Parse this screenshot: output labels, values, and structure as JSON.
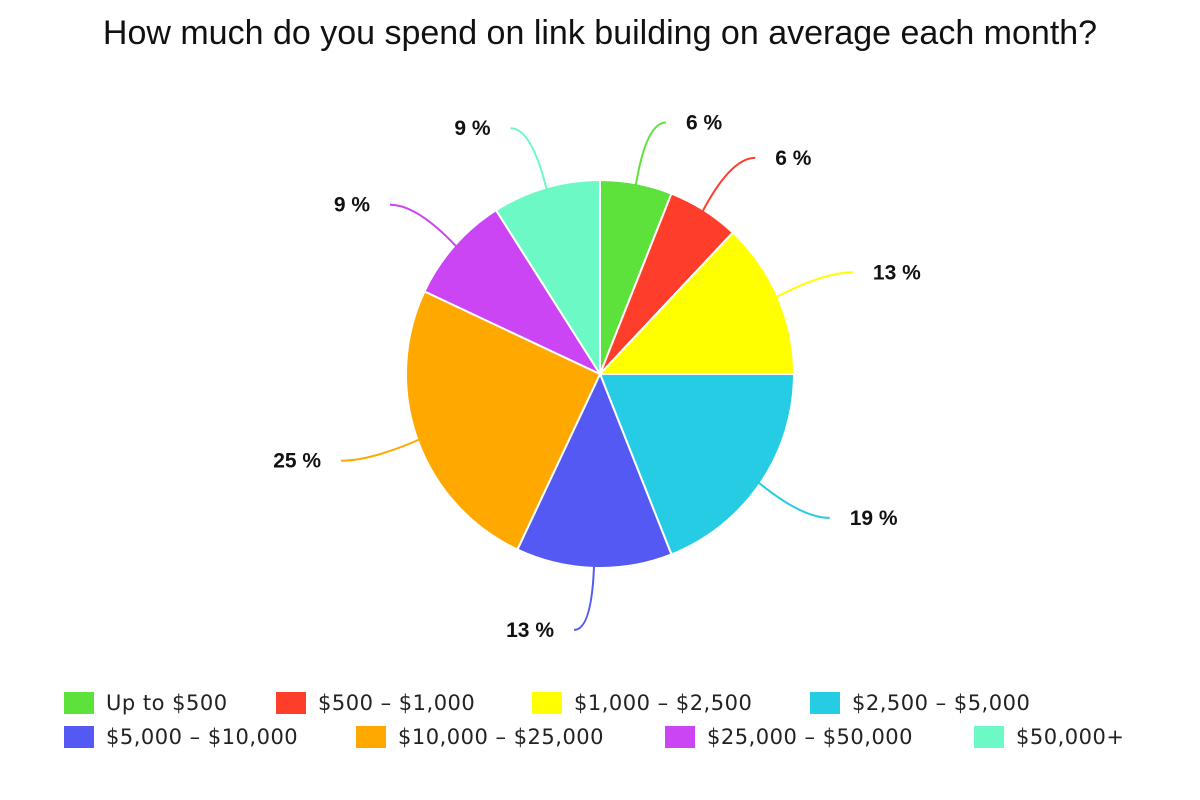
{
  "chart_data": {
    "type": "pie",
    "title": "How much do you spend on link building on average each month?",
    "start_angle_deg": 0,
    "direction": "clockwise",
    "legend_position": "bottom",
    "slices": [
      {
        "label": "Up to $500",
        "value": 6,
        "display": "6 %",
        "color": "#5de23b"
      },
      {
        "label": "$500 – $1,000",
        "value": 6,
        "display": "6 %",
        "color": "#ff3d2b"
      },
      {
        "label": "$1,000 – $2,500",
        "value": 13,
        "display": "13 %",
        "color": "#ffff00"
      },
      {
        "label": "$2,500 – $5,000",
        "value": 19,
        "display": "19 %",
        "color": "#26cce4"
      },
      {
        "label": "$5,000 – $10,000",
        "value": 13,
        "display": "13 %",
        "color": "#5459f4"
      },
      {
        "label": "$10,000 – $25,000",
        "value": 25,
        "display": "25 %",
        "color": "#ffa900"
      },
      {
        "label": "$25,000 – $50,000",
        "value": 9,
        "display": "9 %",
        "color": "#cb45f4"
      },
      {
        "label": "$50,000+",
        "value": 9,
        "display": "9 %",
        "color": "#6cf9c6"
      }
    ]
  }
}
